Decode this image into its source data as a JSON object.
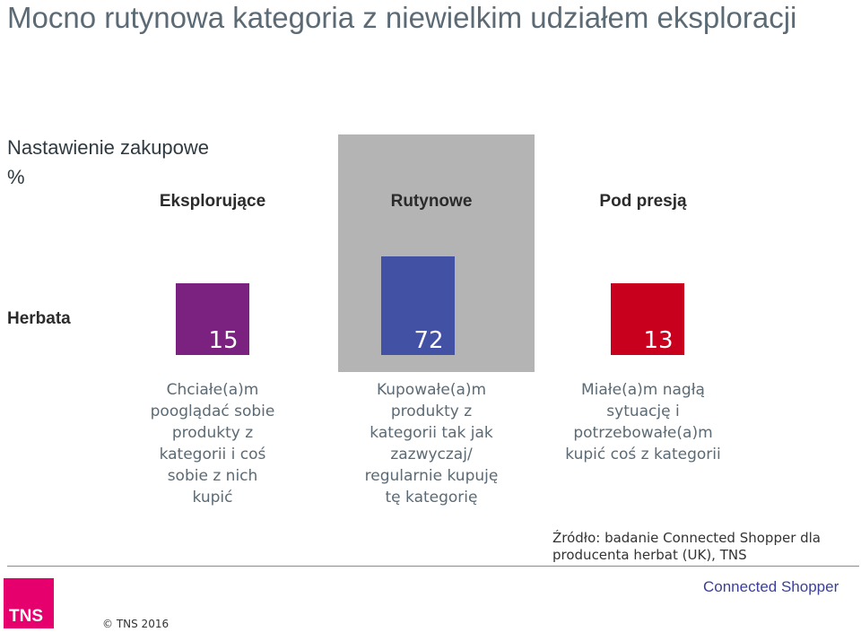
{
  "title": "Mocno rutynowa kategoria z niewielkim udziałem eksploracji",
  "subtitle": "Nastawienie zakupowe",
  "unit": "%",
  "row_label": "Herbata",
  "columns": [
    {
      "name": "Eksplorujące",
      "description_lines": [
        "Chciałe(a)m",
        "pooglądać sobie",
        "produkty z",
        "kategorii i coś",
        "sobie z nich",
        "kupić"
      ]
    },
    {
      "name": "Rutynowe",
      "description_lines": [
        "Kupowałe(a)m",
        "produkty z",
        "kategorii tak jak",
        "zazwyczaj/",
        "regularnie kupuję",
        "tę kategorię"
      ]
    },
    {
      "name": "Pod presją",
      "description_lines": [
        "Miałe(a)m nagłą",
        "sytuację i",
        "potrzebowałe(a)m",
        "kupić coś z kategorii"
      ]
    }
  ],
  "chart_data": {
    "type": "bar",
    "categories": [
      "Eksplorujące",
      "Rutynowe",
      "Pod presją"
    ],
    "series": [
      {
        "values": [
          15,
          72,
          13
        ]
      }
    ],
    "colors": [
      "#7b2281",
      "#4351a4",
      "#c8001d"
    ],
    "highlighted_category": "Rutynowe",
    "highlight_color": "#b4b4b4"
  },
  "source_lines": [
    "Źródło: badanie Connected Shopper dla",
    "producenta herbat (UK), TNS"
  ],
  "footer": {
    "logo_text": "TNS",
    "copyright": "© TNS 2016",
    "brand": "Connected Shopper"
  }
}
